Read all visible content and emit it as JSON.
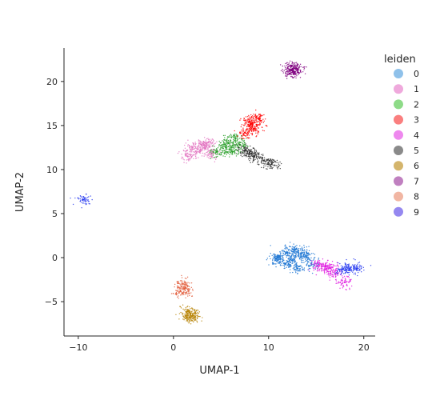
{
  "chart_data": {
    "type": "scatter",
    "xlabel": "UMAP-1",
    "ylabel": "UMAP-2",
    "xlim": [
      -11.5,
      21.2
    ],
    "ylim": [
      -8.9,
      23.8
    ],
    "xticks": [
      -10,
      0,
      10,
      20
    ],
    "yticks": [
      -5,
      0,
      5,
      10,
      15,
      20
    ],
    "xtick_labels": [
      "−10",
      "0",
      "10",
      "20"
    ],
    "ytick_labels": [
      "−5",
      "0",
      "5",
      "10",
      "15",
      "20"
    ],
    "grid": false,
    "legend": {
      "title": "leiden",
      "placement": "right",
      "entries": [
        "0",
        "1",
        "2",
        "3",
        "4",
        "5",
        "6",
        "7",
        "8",
        "9"
      ]
    },
    "series": [
      {
        "name": "0",
        "color": "#1f77d4",
        "points": [
          [
            12.5,
            -0.3
          ],
          [
            11.0,
            0.0
          ],
          [
            13.5,
            0.5
          ],
          [
            14.5,
            -0.8
          ],
          [
            12.0,
            0.6
          ],
          [
            10.8,
            -0.1
          ],
          [
            13.0,
            -1.2
          ],
          [
            14.0,
            0.2
          ],
          [
            11.8,
            -0.7
          ],
          [
            12.8,
            0.9
          ]
        ]
      },
      {
        "name": "1",
        "color": "#e377c2",
        "points": [
          [
            2.8,
            12.2
          ],
          [
            1.5,
            11.5
          ],
          [
            3.5,
            13.0
          ],
          [
            2.0,
            12.5
          ],
          [
            4.0,
            11.8
          ],
          [
            3.2,
            12.8
          ]
        ]
      },
      {
        "name": "2",
        "color": "#2ca02c",
        "points": [
          [
            5.5,
            12.5
          ],
          [
            6.5,
            13.5
          ],
          [
            4.5,
            12.0
          ],
          [
            7.0,
            12.8
          ],
          [
            5.8,
            13.0
          ],
          [
            6.2,
            12.0
          ]
        ]
      },
      {
        "name": "3",
        "color": "#ff0000",
        "points": [
          [
            8.3,
            15.0
          ],
          [
            7.5,
            14.2
          ],
          [
            9.0,
            15.8
          ],
          [
            8.0,
            15.5
          ],
          [
            8.6,
            14.6
          ]
        ]
      },
      {
        "name": "4",
        "color": "#e020e0",
        "points": [
          [
            16.0,
            -1.0
          ],
          [
            15.2,
            -0.9
          ],
          [
            17.0,
            -1.8
          ],
          [
            18.0,
            -2.8
          ],
          [
            16.5,
            -1.2
          ]
        ]
      },
      {
        "name": "5",
        "color": "#303030",
        "points": [
          [
            8.5,
            11.5
          ],
          [
            7.5,
            12.2
          ],
          [
            9.5,
            11.0
          ],
          [
            10.3,
            10.6
          ],
          [
            8.0,
            11.9
          ]
        ]
      },
      {
        "name": "6",
        "color": "#b8860b",
        "points": [
          [
            1.8,
            -6.4
          ],
          [
            1.5,
            -6.1
          ],
          [
            2.0,
            -6.6
          ],
          [
            1.7,
            -6.8
          ]
        ]
      },
      {
        "name": "7",
        "color": "#800080",
        "points": [
          [
            12.5,
            21.3
          ],
          [
            12.2,
            20.9
          ],
          [
            13.0,
            21.4
          ],
          [
            12.4,
            21.8
          ]
        ]
      },
      {
        "name": "8",
        "color": "#e36040",
        "points": [
          [
            0.9,
            -3.0
          ],
          [
            1.2,
            -3.5
          ],
          [
            1.0,
            -4.0
          ]
        ]
      },
      {
        "name": "9",
        "color": "#2b3ef0",
        "points": [
          [
            -9.5,
            6.6
          ],
          [
            18.5,
            -1.3
          ],
          [
            19.3,
            -1.2
          ],
          [
            17.7,
            -1.4
          ]
        ]
      }
    ],
    "legend_colors": [
      "#8fc1ea",
      "#efa9dc",
      "#8edb88",
      "#fa7f7f",
      "#ee88ee",
      "#8a8a8a",
      "#d4b56c",
      "#c080c0",
      "#f1b6a3",
      "#9588f0"
    ]
  }
}
